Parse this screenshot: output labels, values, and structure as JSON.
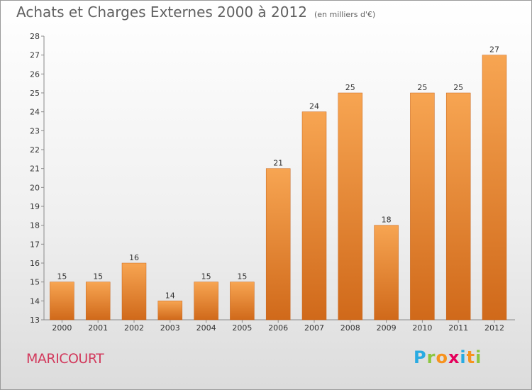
{
  "header": {
    "title": "Achats et Charges Externes 2000 à 2012",
    "unit": "(en milliers d'€)"
  },
  "footer": {
    "town": "MARICOURT",
    "logo_letters": [
      "P",
      "r",
      "o",
      "x",
      "i",
      "t",
      "i"
    ],
    "logo_colors": [
      "#29abe2",
      "#8cc63f",
      "#f7931e",
      "#e5005b",
      "#29abe2",
      "#f7931e",
      "#8cc63f"
    ]
  },
  "chart_data": {
    "type": "bar",
    "title": "Achats et Charges Externes 2000 à 2012",
    "subtitle": "(en milliers d'€)",
    "xlabel": "",
    "ylabel": "",
    "categories": [
      "2000",
      "2001",
      "2002",
      "2003",
      "2004",
      "2005",
      "2006",
      "2007",
      "2008",
      "2009",
      "2010",
      "2011",
      "2012"
    ],
    "values": [
      15,
      15,
      16,
      14,
      15,
      15,
      21,
      24,
      25,
      18,
      25,
      25,
      27
    ],
    "ylim": [
      13,
      28
    ],
    "yticks": [
      13,
      14,
      15,
      16,
      17,
      18,
      19,
      20,
      21,
      22,
      23,
      24,
      25,
      26,
      27,
      28
    ],
    "grid": false,
    "legend": "none",
    "bar_color": "#f28a2c"
  }
}
